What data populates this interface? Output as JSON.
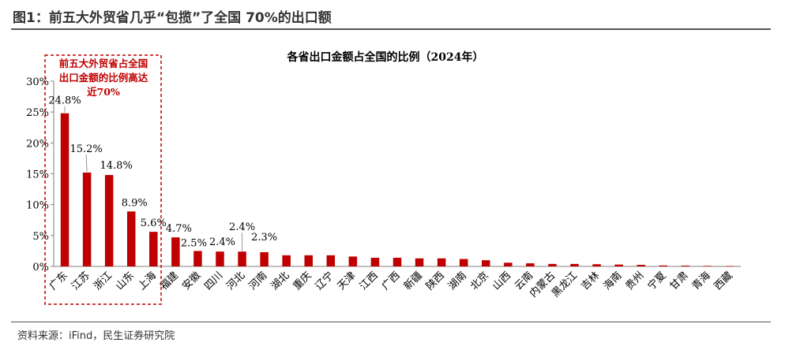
{
  "header": {
    "title": "图1：前五大外贸省几乎“包揽”了全国 70%的出口额"
  },
  "footer": {
    "source": "资料来源：iFind，民生证券研究院"
  },
  "chart_data": {
    "type": "bar",
    "title": "各省出口金额占全国的比例（2024年）",
    "categories": [
      "广东",
      "江苏",
      "浙江",
      "山东",
      "上海",
      "福建",
      "安徽",
      "四川",
      "河北",
      "河南",
      "湖北",
      "重庆",
      "辽宁",
      "天津",
      "江西",
      "广西",
      "新疆",
      "陕西",
      "湖南",
      "北京",
      "山西",
      "云南",
      "内蒙古",
      "黑龙江",
      "吉林",
      "海南",
      "贵州",
      "宁夏",
      "甘肃",
      "青海",
      "西藏"
    ],
    "values": [
      24.8,
      15.2,
      14.8,
      8.9,
      5.6,
      4.7,
      2.5,
      2.4,
      2.4,
      2.3,
      1.8,
      1.8,
      1.8,
      1.6,
      1.4,
      1.4,
      1.3,
      1.3,
      1.2,
      1.0,
      0.6,
      0.5,
      0.4,
      0.4,
      0.35,
      0.3,
      0.25,
      0.15,
      0.12,
      0.08,
      0.05
    ],
    "labels": [
      {
        "index": 0,
        "text": "24.8%"
      },
      {
        "index": 1,
        "text": "15.2%"
      },
      {
        "index": 2,
        "text": "14.8%"
      },
      {
        "index": 3,
        "text": "8.9%"
      },
      {
        "index": 4,
        "text": "5.6%"
      },
      {
        "index": 5,
        "text": "4.7%"
      },
      {
        "index": 6,
        "text": "2.5%"
      },
      {
        "index": 7,
        "text": "2.4%"
      },
      {
        "index": 8,
        "text": "2.4%"
      },
      {
        "index": 9,
        "text": "2.3%"
      }
    ],
    "ylim": [
      0,
      30
    ],
    "yticks": [
      "0%",
      "5%",
      "10%",
      "15%",
      "20%",
      "25%",
      "30%"
    ],
    "annotation": {
      "lines": [
        "前五大外贸省占全国",
        "出口金额的比例高达",
        "近70%"
      ]
    },
    "colors": {
      "bar": "#C00000",
      "annotation": "#C00000",
      "axis": "#7F7F7F",
      "text": "#000000"
    }
  }
}
